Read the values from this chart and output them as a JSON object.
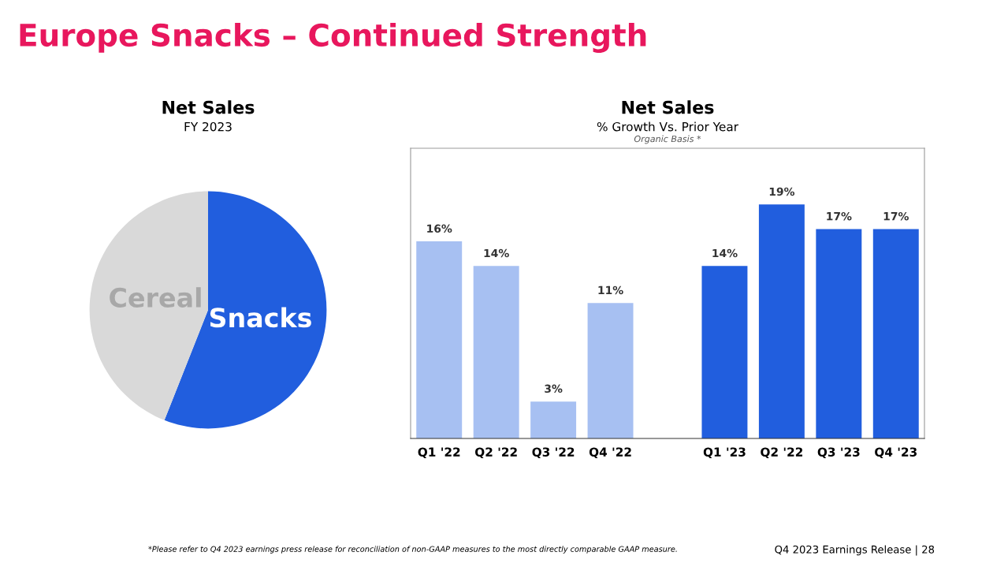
{
  "chart_data": [
    {
      "type": "pie",
      "title": "Net Sales",
      "subtitle": "FY 2023",
      "categories": [
        "Snacks",
        "Cereal"
      ],
      "values": [
        56,
        44
      ],
      "colors": [
        "#215ede",
        "#d9d9d9"
      ],
      "annotations": [
        "Europe Snacks – Continued Strength"
      ]
    },
    {
      "type": "bar",
      "title": "Net Sales",
      "subtitle": "% Growth Vs. Prior Year",
      "categories": [
        "Q1 '22",
        "Q2 '22",
        "Q3 '22",
        "Q4 '22",
        null,
        "Q1 '23",
        "Q2 '22",
        "Q3 '23",
        "Q4 '23"
      ],
      "values": [
        16,
        14,
        3,
        11,
        null,
        14,
        19,
        17,
        17
      ],
      "colors": [
        "#a7c0f2",
        "#a7c0f2",
        "#a7c0f2",
        "#a7c0f2",
        null,
        "#215ede",
        "#215ede",
        "#215ede",
        "#215ede"
      ],
      "value_labels": [
        "16%",
        "14%",
        "3%",
        "11%",
        null,
        "14%",
        "19%",
        "17%",
        "17%"
      ],
      "grid": false,
      "legend": false,
      "annotations": [
        "Organic Basis *",
        "*Please refer to Q4 2023 earnings press release for reconciliation of non-GAAP measures to the most directly comparable GAAP measure.",
        "Q4 2023 Earnings Release | 28"
      ]
    }
  ]
}
